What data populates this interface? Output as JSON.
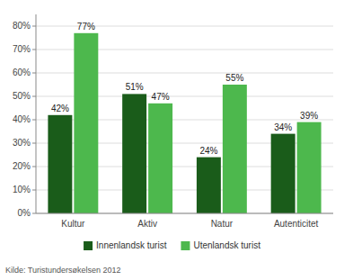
{
  "chart_data": {
    "type": "bar",
    "categories": [
      "Kultur",
      "Aktiv",
      "Natur",
      "Autenticitet"
    ],
    "series": [
      {
        "name": "Innenlandsk turist",
        "color": "#1a5c1a",
        "values": [
          42,
          51,
          24,
          34
        ],
        "value_labels": [
          "42%",
          "51%",
          "24%",
          "34%"
        ]
      },
      {
        "name": "Utenlandsk turist",
        "color": "#4db84d",
        "values": [
          77,
          47,
          55,
          39
        ],
        "value_labels": [
          "77%",
          "47%",
          "55%",
          "39%"
        ]
      }
    ],
    "ylim": [
      0,
      85
    ],
    "yticks": [
      {
        "value": 0,
        "label": "0%"
      },
      {
        "value": 10,
        "label": "10%"
      },
      {
        "value": 20,
        "label": "20%"
      },
      {
        "value": 30,
        "label": "30%"
      },
      {
        "value": 40,
        "label": "40%"
      },
      {
        "value": 50,
        "label": "50%"
      },
      {
        "value": 60,
        "label": "60%"
      },
      {
        "value": 70,
        "label": "70%"
      },
      {
        "value": 80,
        "label": "80%"
      }
    ],
    "grid": true,
    "legend": "bottom",
    "data_labels": true,
    "annotations": [
      "Kilde: Turistundersøkelsen 2012"
    ]
  }
}
